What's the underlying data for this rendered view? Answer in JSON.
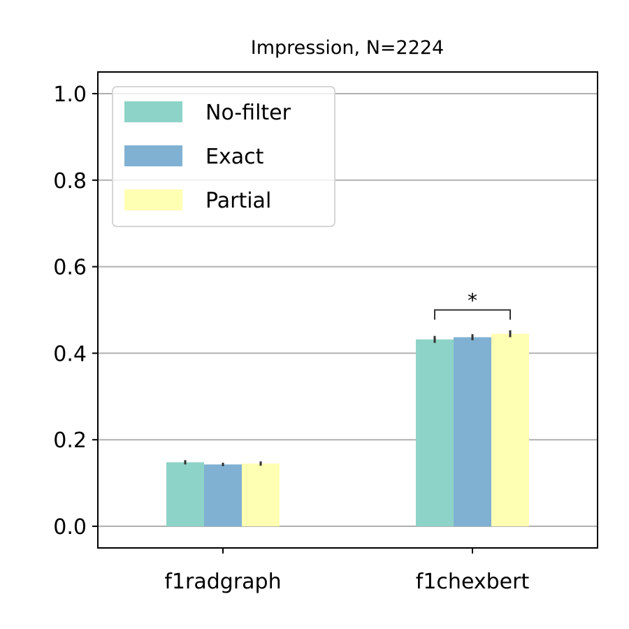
{
  "chart_data": {
    "type": "bar",
    "title": "Impression, N=2224",
    "xlabel": "",
    "ylabel": "",
    "categories": [
      "f1radgraph",
      "f1chexbert"
    ],
    "series": [
      {
        "name": "No-filter",
        "values": [
          0.148,
          0.432
        ],
        "errors": [
          0.005,
          0.008
        ],
        "color": "#8dd3c7"
      },
      {
        "name": "Exact",
        "values": [
          0.143,
          0.437
        ],
        "errors": [
          0.004,
          0.007
        ],
        "color": "#80b1d3"
      },
      {
        "name": "Partial",
        "values": [
          0.145,
          0.445
        ],
        "errors": [
          0.005,
          0.008
        ],
        "color": "#ffffb3"
      }
    ],
    "ylim": [
      -0.05,
      1.05
    ],
    "yticks": [
      "0.0",
      "0.2",
      "0.4",
      "0.6",
      "0.8",
      "1.0"
    ],
    "ytick_values": [
      0.0,
      0.2,
      0.4,
      0.6,
      0.8,
      1.0
    ],
    "grid": "y",
    "grid_color": "#b0b0b0",
    "legend_position": "top-left",
    "significance": {
      "category": "f1chexbert",
      "from_series": "No-filter",
      "to_series": "Partial",
      "label": "*",
      "y": 0.5
    }
  }
}
